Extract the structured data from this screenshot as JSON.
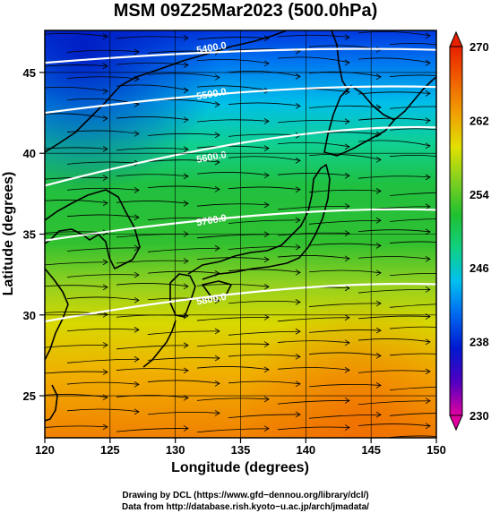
{
  "title": "MSM 09Z25Mar2023 (500.0hPa)",
  "map": {
    "xlabel": "Longitude (degrees)",
    "ylabel": "Latitude  (degrees)",
    "x_ticks": [
      "120",
      "125",
      "130",
      "135",
      "140",
      "145",
      "150"
    ],
    "y_ticks": [
      "45",
      "40",
      "35",
      "30",
      "25"
    ],
    "lon_range": [
      120,
      150
    ],
    "lat_range": [
      22.4,
      47.6
    ],
    "contours": [
      {
        "label": "5400.0",
        "lat_west": 45.6,
        "lat_east": 46.4
      },
      {
        "label": "5500.0",
        "lat_west": 42.5,
        "lat_east": 44.1
      },
      {
        "label": "5600.0",
        "lat_west": 38.0,
        "lat_east": 41.6
      },
      {
        "label": "5700.0",
        "lat_west": 34.6,
        "lat_east": 36.5
      },
      {
        "label": "5800.0",
        "lat_west": 29.6,
        "lat_east": 31.9
      }
    ]
  },
  "colorbar": {
    "tick_labels": [
      "270",
      "262",
      "254",
      "246",
      "238",
      "230"
    ],
    "range": [
      230,
      270
    ],
    "colors": [
      "#e000a0",
      "#5000c0",
      "#0018d0",
      "#0068f0",
      "#00c0f0",
      "#10d080",
      "#20c030",
      "#80d020",
      "#e0e000",
      "#f0a000",
      "#f06000",
      "#e82000"
    ]
  },
  "footer": {
    "line1": "Drawing by DCL (https://www.gfd−dennou.org/library/dcl/)",
    "line2": "Data from http://database.rish.kyoto−u.ac.jp/arch/jmadata/"
  }
}
